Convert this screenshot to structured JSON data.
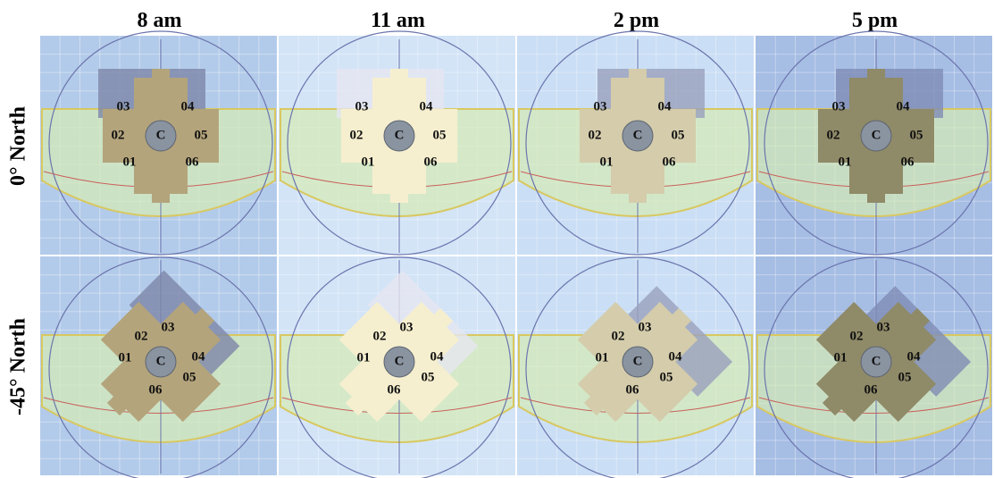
{
  "columns": [
    "8 am",
    "11 am",
    "2 pm",
    "5 pm"
  ],
  "rows": [
    {
      "label": "0° North",
      "panels": [
        {
          "units": [
            "C",
            "01",
            "02",
            "03",
            "04",
            "05",
            "06"
          ]
        },
        {
          "units": [
            "C",
            "01",
            "02",
            "03",
            "04",
            "05",
            "06"
          ]
        },
        {
          "units": [
            "C",
            "01",
            "02",
            "03",
            "04",
            "05",
            "06"
          ]
        },
        {
          "units": [
            "C",
            "01",
            "02",
            "03",
            "04",
            "05",
            "06"
          ]
        }
      ]
    },
    {
      "label": "-45° North",
      "panels": [
        {
          "units": [
            "C",
            "01",
            "02",
            "03",
            "04",
            "05",
            "06"
          ]
        },
        {
          "units": [
            "C",
            "01",
            "02",
            "03",
            "04",
            "05",
            "06"
          ]
        },
        {
          "units": [
            "C",
            "01",
            "02",
            "03",
            "04",
            "05",
            "06"
          ]
        },
        {
          "units": [
            "C",
            "01",
            "02",
            "03",
            "04",
            "05",
            "06"
          ]
        }
      ]
    }
  ]
}
